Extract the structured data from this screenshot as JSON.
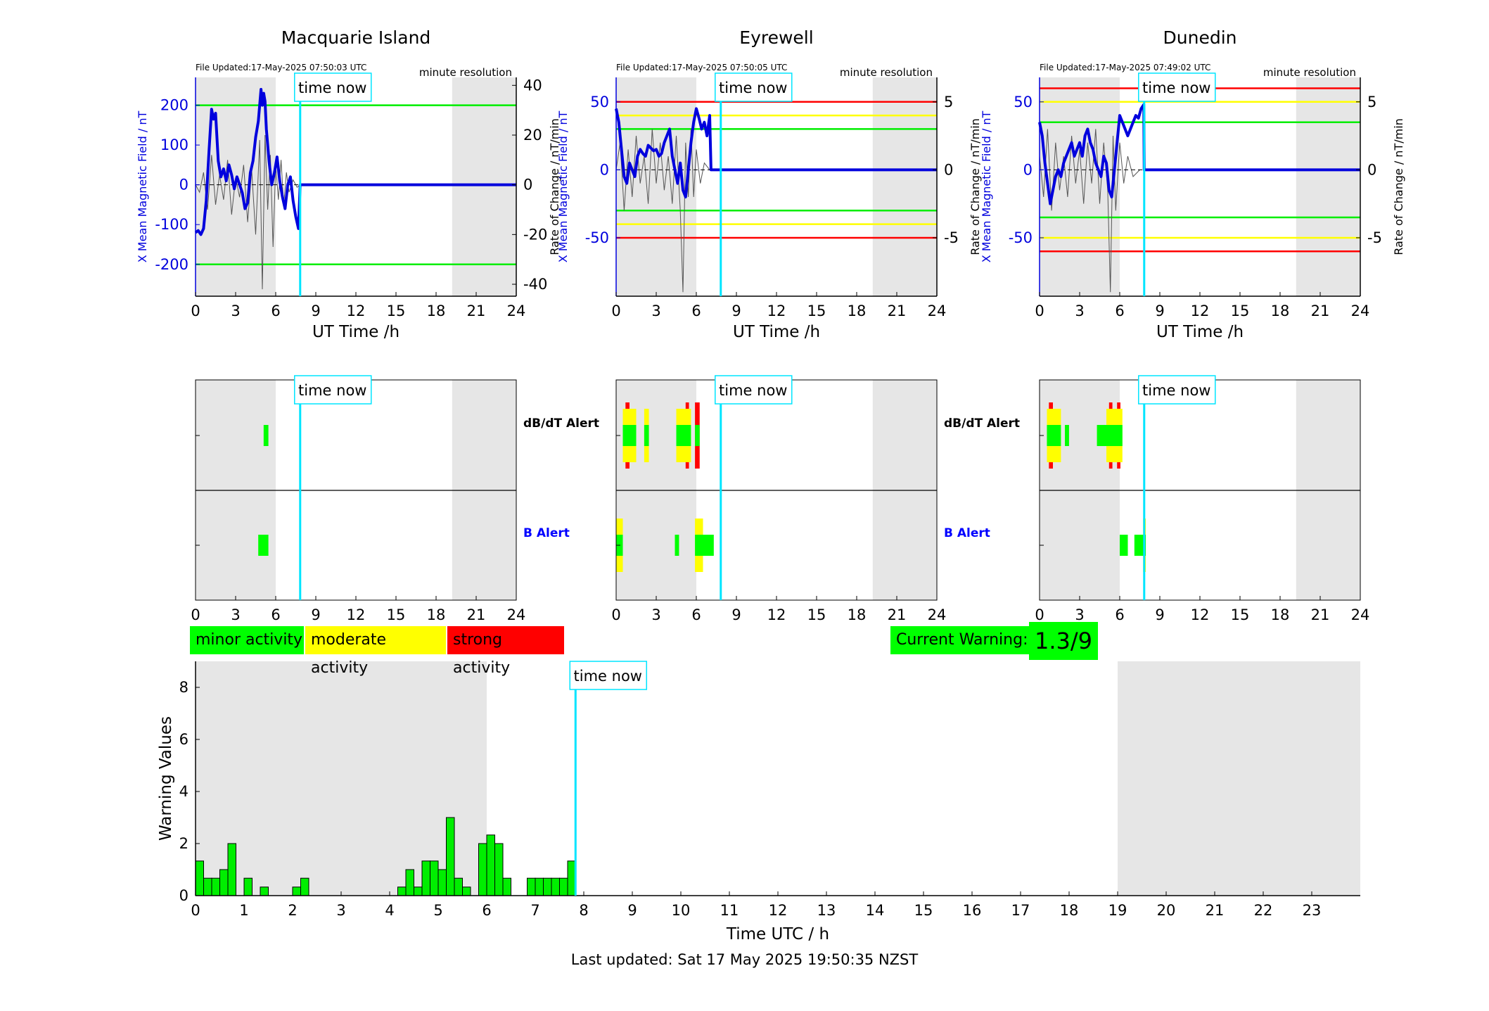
{
  "time_now_label": "time now",
  "chart_data": [
    {
      "type": "line",
      "title": "Macquarie Island",
      "file_updated": "File Updated:17-May-2025 07:50:03 UTC",
      "resolution": "minute resolution",
      "xlabel": "UT Time /h",
      "ylabel_left": "X Mean Magnetic Field / nT",
      "ylabel_right": "Rate of Change / nT/min",
      "xlim": [
        0,
        24
      ],
      "xticks": [
        0,
        3,
        6,
        9,
        12,
        15,
        18,
        21,
        24
      ],
      "ylim_left": [
        -280,
        270
      ],
      "yticks_left": [
        -200,
        -100,
        0,
        100,
        200
      ],
      "ylim_right": [
        -44.8,
        43.2
      ],
      "yticks_right": [
        -40,
        -20,
        0,
        20,
        40
      ],
      "night_shading_hours": [
        [
          0,
          6
        ],
        [
          19.2,
          24
        ]
      ],
      "time_now_hour": 7.83,
      "threshold_lines": [
        {
          "color": "#00ee00",
          "value": 200
        },
        {
          "color": "#00ee00",
          "value": -200
        }
      ],
      "series": [
        {
          "color": "#0000dd",
          "axis": "left",
          "x": [
            0,
            0.2,
            0.4,
            0.6,
            0.8,
            1.0,
            1.2,
            1.35,
            1.5,
            1.7,
            1.9,
            2.1,
            2.3,
            2.5,
            2.7,
            2.9,
            3.1,
            3.3,
            3.5,
            3.7,
            3.9,
            4.1,
            4.3,
            4.5,
            4.7,
            4.9,
            5.0,
            5.1,
            5.2,
            5.3,
            5.5,
            5.7,
            5.9,
            6.1,
            6.3,
            6.5,
            6.7,
            6.9,
            7.1,
            7.3,
            7.5,
            7.7,
            7.83,
            24
          ],
          "y": [
            -120,
            -115,
            -125,
            -110,
            -40,
            80,
            190,
            165,
            180,
            60,
            20,
            40,
            10,
            50,
            25,
            -10,
            20,
            0,
            -20,
            -60,
            -45,
            30,
            60,
            120,
            160,
            240,
            200,
            230,
            210,
            140,
            60,
            0,
            30,
            70,
            10,
            -30,
            -60,
            0,
            20,
            -40,
            -80,
            -110,
            0,
            0
          ]
        },
        {
          "color": "#555555",
          "axis": "right",
          "x": [
            0,
            0.3,
            0.6,
            0.9,
            1.2,
            1.5,
            1.8,
            2.1,
            2.4,
            2.7,
            3.0,
            3.3,
            3.6,
            3.9,
            4.2,
            4.5,
            4.8,
            5.0,
            5.2,
            5.4,
            5.6,
            5.8,
            6.0,
            6.2,
            6.4,
            6.6,
            6.8,
            7.0,
            7.3,
            7.6,
            7.83
          ],
          "y": [
            0,
            -3,
            5,
            -10,
            12,
            -8,
            4,
            -6,
            10,
            -12,
            3,
            -5,
            8,
            -15,
            6,
            -20,
            18,
            -42,
            20,
            -10,
            12,
            -25,
            8,
            -6,
            10,
            -8,
            5,
            -3,
            2,
            -1,
            0
          ]
        }
      ]
    },
    {
      "type": "line",
      "title": "Eyrewell",
      "file_updated": "File Updated:17-May-2025 07:50:05 UTC",
      "resolution": "minute resolution",
      "xlabel": "UT Time /h",
      "ylabel_left": "X Mean Magnetic Field / nT",
      "ylabel_right": "Rate of Change / nT/min",
      "xlim": [
        0,
        24
      ],
      "xticks": [
        0,
        3,
        6,
        9,
        12,
        15,
        18,
        21,
        24
      ],
      "ylim_left": [
        -93,
        68
      ],
      "yticks_left": [
        -50,
        0,
        50
      ],
      "ylim_right": [
        -9.3,
        6.8
      ],
      "yticks_right": [
        -5,
        0,
        5
      ],
      "night_shading_hours": [
        [
          0,
          6
        ],
        [
          19.2,
          24
        ]
      ],
      "time_now_hour": 7.83,
      "threshold_lines": [
        {
          "color": "#ff0000",
          "value": 50
        },
        {
          "color": "#ffff00",
          "value": 40
        },
        {
          "color": "#00ee00",
          "value": 30
        },
        {
          "color": "#00ee00",
          "value": -30
        },
        {
          "color": "#ffff00",
          "value": -40
        },
        {
          "color": "#ff0000",
          "value": -50
        }
      ],
      "series": [
        {
          "color": "#0000dd",
          "axis": "left",
          "x": [
            0,
            0.2,
            0.4,
            0.6,
            0.8,
            1.0,
            1.2,
            1.4,
            1.6,
            1.8,
            2.0,
            2.2,
            2.4,
            2.6,
            2.8,
            3.0,
            3.2,
            3.4,
            3.6,
            3.8,
            4.0,
            4.2,
            4.4,
            4.6,
            4.8,
            5.0,
            5.2,
            5.4,
            5.6,
            5.8,
            6.0,
            6.2,
            6.4,
            6.6,
            6.8,
            7.0,
            7.1,
            24
          ],
          "y": [
            45,
            35,
            15,
            -5,
            -10,
            5,
            0,
            -5,
            10,
            15,
            12,
            10,
            18,
            16,
            14,
            15,
            10,
            12,
            20,
            25,
            30,
            10,
            0,
            -10,
            5,
            -15,
            -20,
            0,
            20,
            35,
            45,
            38,
            30,
            35,
            25,
            40,
            0,
            0
          ]
        },
        {
          "color": "#555555",
          "axis": "right",
          "x": [
            0,
            0.3,
            0.6,
            0.9,
            1.2,
            1.5,
            1.8,
            2.1,
            2.4,
            2.7,
            3.0,
            3.3,
            3.6,
            3.9,
            4.2,
            4.5,
            4.8,
            5.0,
            5.2,
            5.4,
            5.6,
            5.8,
            6.0,
            6.3,
            6.6,
            7.0
          ],
          "y": [
            0,
            2,
            -3,
            1.5,
            -2,
            2.5,
            -1,
            1,
            -2.5,
            3,
            -1,
            2,
            -1.5,
            1,
            -2.5,
            2.5,
            -3,
            -9,
            2,
            -2,
            3,
            -2,
            1.5,
            -1,
            0.5,
            0
          ]
        }
      ]
    },
    {
      "type": "line",
      "title": "Dunedin",
      "file_updated": "File Updated:17-May-2025 07:49:02 UTC",
      "resolution": "minute resolution",
      "xlabel": "UT Time /h",
      "ylabel_left": "X Mean Magnetic Field / nT",
      "ylabel_right": "Rate of Change / nT/min",
      "xlim": [
        0,
        24
      ],
      "xticks": [
        0,
        3,
        6,
        9,
        12,
        15,
        18,
        21,
        24
      ],
      "ylim_left": [
        -93,
        68
      ],
      "yticks_left": [
        -50,
        0,
        50
      ],
      "ylim_right": [
        -9.3,
        6.8
      ],
      "yticks_right": [
        -5,
        0,
        5
      ],
      "night_shading_hours": [
        [
          0,
          6
        ],
        [
          19.2,
          24
        ]
      ],
      "time_now_hour": 7.83,
      "threshold_lines": [
        {
          "color": "#ff0000",
          "value": 60
        },
        {
          "color": "#ffff00",
          "value": 50
        },
        {
          "color": "#00ee00",
          "value": 35
        },
        {
          "color": "#00ee00",
          "value": -35
        },
        {
          "color": "#ffff00",
          "value": -50
        },
        {
          "color": "#ff0000",
          "value": -60
        }
      ],
      "series": [
        {
          "color": "#0000dd",
          "axis": "left",
          "x": [
            0,
            0.2,
            0.4,
            0.6,
            0.8,
            1.0,
            1.2,
            1.4,
            1.6,
            1.8,
            2.0,
            2.2,
            2.4,
            2.6,
            2.8,
            3.0,
            3.2,
            3.4,
            3.6,
            3.8,
            4.0,
            4.2,
            4.4,
            4.6,
            4.8,
            5.0,
            5.2,
            5.4,
            5.6,
            5.8,
            6.0,
            6.2,
            6.4,
            6.6,
            6.8,
            7.0,
            7.2,
            7.4,
            7.6,
            7.8,
            7.83,
            24
          ],
          "y": [
            35,
            25,
            5,
            -10,
            -25,
            -15,
            -5,
            0,
            -5,
            5,
            10,
            15,
            20,
            10,
            15,
            20,
            10,
            25,
            30,
            20,
            15,
            5,
            0,
            -5,
            10,
            5,
            -15,
            -20,
            0,
            20,
            40,
            35,
            30,
            25,
            30,
            35,
            40,
            38,
            45,
            48,
            0,
            0
          ]
        },
        {
          "color": "#555555",
          "axis": "right",
          "x": [
            0,
            0.3,
            0.6,
            0.9,
            1.2,
            1.5,
            1.8,
            2.1,
            2.4,
            2.7,
            3.0,
            3.3,
            3.6,
            3.9,
            4.2,
            4.5,
            4.8,
            5.1,
            5.3,
            5.5,
            5.7,
            6.0,
            6.3,
            6.6,
            7.0,
            7.5
          ],
          "y": [
            1,
            -2,
            3,
            -3,
            2,
            -1.5,
            1,
            -2,
            2.5,
            -1,
            1.5,
            -2.5,
            2,
            -1,
            3,
            -2.5,
            2,
            -1.5,
            -9,
            2.5,
            -3,
            2,
            -1,
            1,
            -0.5,
            0
          ]
        }
      ]
    },
    {
      "type": "bar",
      "title": "",
      "kind": "alert-strip",
      "rows": [
        "dB/dT Alert",
        "B Alert"
      ],
      "xlim": [
        0,
        24
      ],
      "xticks": [
        0,
        3,
        6,
        9,
        12,
        15,
        18,
        21,
        24
      ],
      "night_shading_hours": [
        [
          0,
          6
        ],
        [
          19.2,
          24
        ]
      ],
      "time_now_hour": 7.83,
      "dbdt_bars": [
        {
          "start": 5.1,
          "end": 5.45,
          "level": "minor"
        }
      ],
      "b_bars": [
        {
          "start": 4.7,
          "end": 5.45,
          "level": "minor"
        }
      ]
    },
    {
      "type": "bar",
      "title": "",
      "kind": "alert-strip",
      "rows": [
        "dB/dT Alert",
        "B Alert"
      ],
      "xlim": [
        0,
        24
      ],
      "xticks": [
        0,
        3,
        6,
        9,
        12,
        15,
        18,
        21,
        24
      ],
      "night_shading_hours": [
        [
          0,
          6
        ],
        [
          19.2,
          24
        ]
      ],
      "time_now_hour": 7.83,
      "dbdt_bars": [
        {
          "start": 0.5,
          "end": 1.5,
          "level": "moderate"
        },
        {
          "start": 0.7,
          "end": 1.0,
          "level": "strong"
        },
        {
          "start": 2.1,
          "end": 2.45,
          "level": "moderate"
        },
        {
          "start": 4.5,
          "end": 5.6,
          "level": "moderate"
        },
        {
          "start": 5.2,
          "end": 5.45,
          "level": "strong"
        },
        {
          "start": 5.9,
          "end": 6.25,
          "level": "strong"
        }
      ],
      "b_bars": [
        {
          "start": 0,
          "end": 0.5,
          "level": "moderate"
        },
        {
          "start": 4.4,
          "end": 4.7,
          "level": "minor"
        },
        {
          "start": 5.9,
          "end": 6.5,
          "level": "moderate"
        },
        {
          "start": 6.5,
          "end": 7.3,
          "level": "minor"
        }
      ]
    },
    {
      "type": "bar",
      "title": "",
      "kind": "alert-strip",
      "rows": [
        "dB/dT Alert",
        "B Alert"
      ],
      "xlim": [
        0,
        24
      ],
      "xticks": [
        0,
        3,
        6,
        9,
        12,
        15,
        18,
        21,
        24
      ],
      "night_shading_hours": [
        [
          0,
          6
        ],
        [
          19.2,
          24
        ]
      ],
      "time_now_hour": 7.83,
      "dbdt_bars": [
        {
          "start": 0.55,
          "end": 1.6,
          "level": "moderate"
        },
        {
          "start": 0.7,
          "end": 1.0,
          "level": "strong"
        },
        {
          "start": 1.9,
          "end": 2.2,
          "level": "minor"
        },
        {
          "start": 4.3,
          "end": 5.2,
          "level": "minor"
        },
        {
          "start": 5.0,
          "end": 6.2,
          "level": "moderate"
        },
        {
          "start": 5.2,
          "end": 5.45,
          "level": "strong"
        },
        {
          "start": 5.8,
          "end": 6.05,
          "level": "strong"
        }
      ],
      "b_bars": [
        {
          "start": 6.0,
          "end": 6.6,
          "level": "minor"
        },
        {
          "start": 7.1,
          "end": 7.9,
          "level": "minor"
        },
        {
          "start": 7.75,
          "end": 7.95,
          "level": "moderate"
        }
      ]
    },
    {
      "type": "bar",
      "title": "",
      "kind": "warning-values",
      "xlabel": "Time UTC / h",
      "ylabel": "Warning Values",
      "xlim": [
        0,
        24
      ],
      "xticks": [
        0,
        1,
        2,
        3,
        4,
        5,
        6,
        7,
        8,
        9,
        10,
        11,
        12,
        13,
        14,
        15,
        16,
        17,
        18,
        19,
        20,
        21,
        22,
        23
      ],
      "ylim": [
        0,
        9
      ],
      "yticks": [
        0,
        2,
        4,
        6,
        8
      ],
      "night_shading_hours": [
        [
          0,
          6
        ],
        [
          19,
          24
        ]
      ],
      "time_now_hour": 7.83,
      "bin_width_h": 0.1667,
      "bars": [
        {
          "x": 0.0,
          "value": 1.33
        },
        {
          "x": 0.1667,
          "value": 0.67
        },
        {
          "x": 0.3333,
          "value": 0.67
        },
        {
          "x": 0.5,
          "value": 1.0
        },
        {
          "x": 0.6667,
          "value": 2.0
        },
        {
          "x": 1.0,
          "value": 0.67
        },
        {
          "x": 1.3333,
          "value": 0.33
        },
        {
          "x": 2.0,
          "value": 0.33
        },
        {
          "x": 2.1667,
          "value": 0.67
        },
        {
          "x": 4.1667,
          "value": 0.33
        },
        {
          "x": 4.3333,
          "value": 1.0
        },
        {
          "x": 4.5,
          "value": 0.33
        },
        {
          "x": 4.6667,
          "value": 1.33
        },
        {
          "x": 4.8333,
          "value": 1.33
        },
        {
          "x": 5.0,
          "value": 1.0
        },
        {
          "x": 5.1667,
          "value": 3.0
        },
        {
          "x": 5.3333,
          "value": 0.67
        },
        {
          "x": 5.5,
          "value": 0.33
        },
        {
          "x": 5.8333,
          "value": 2.0
        },
        {
          "x": 6.0,
          "value": 2.33
        },
        {
          "x": 6.1667,
          "value": 2.0
        },
        {
          "x": 6.3333,
          "value": 0.67
        },
        {
          "x": 6.8333,
          "value": 0.67
        },
        {
          "x": 7.0,
          "value": 0.67
        },
        {
          "x": 7.1667,
          "value": 0.67
        },
        {
          "x": 7.3333,
          "value": 0.67
        },
        {
          "x": 7.5,
          "value": 0.67
        },
        {
          "x": 7.6667,
          "value": 1.33
        }
      ]
    }
  ],
  "legend": {
    "minor": {
      "label": "minor activity",
      "color": "#00ff00"
    },
    "moderate": {
      "label": "moderate activity",
      "color": "#ffff00"
    },
    "strong": {
      "label": "strong activity",
      "color": "#ff0000"
    }
  },
  "current_warning": {
    "label": "Current Warning:",
    "value": "1.3/9",
    "color": "#00ff00"
  },
  "footer": "Last updated: Sat 17 May 2025 19:50:35 NZST",
  "colors": {
    "night_shading": "#e6e6e6",
    "time_now_line": "#00e5ff",
    "field_line": "#0000dd",
    "rate_line": "#555555",
    "b_alert_label": "#0000ff",
    "warning_bar": "#00ee00"
  }
}
